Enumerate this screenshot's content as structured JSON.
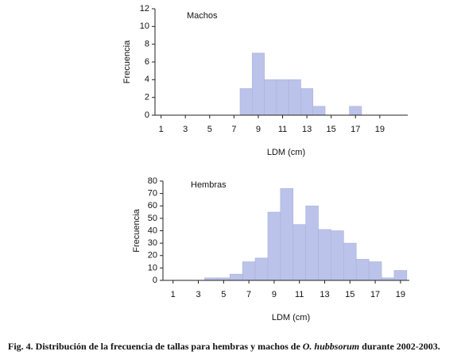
{
  "chart_data": [
    {
      "type": "histogram",
      "label": "Machos",
      "x_label": "LDM (cm)",
      "y_label": "Frecuencia",
      "bins": [
        7.5,
        8.5,
        9.5,
        10.5,
        11.5,
        12.5,
        13.5,
        14.5,
        15.5,
        16.5,
        17.5
      ],
      "values": [
        3,
        7,
        4,
        4,
        4,
        3,
        1,
        0,
        0,
        1
      ],
      "color": "#bcc3ea",
      "xlim": [
        0.5,
        21.3
      ],
      "xticks": [
        1,
        3,
        5,
        7,
        9,
        11,
        13,
        15,
        17,
        19
      ],
      "ylim": [
        0,
        12
      ],
      "yticks": [
        0,
        2,
        4,
        6,
        8,
        10,
        12
      ]
    },
    {
      "type": "histogram",
      "label": "Hembras",
      "x_label": "LDM (cm)",
      "y_label": "Frecuencia",
      "bins": [
        3.5,
        4.5,
        5.5,
        6.5,
        7.5,
        8.5,
        9.5,
        10.5,
        11.5,
        12.5,
        13.5,
        14.5,
        15.5,
        16.5,
        17.5,
        18.5,
        19.5
      ],
      "values": [
        2,
        2,
        5,
        15,
        18,
        55,
        74,
        45,
        60,
        41,
        40,
        30,
        17,
        15,
        2,
        8
      ],
      "color": "#bcc3ea",
      "xlim": [
        0.2,
        19.7
      ],
      "xticks": [
        1,
        3,
        5,
        7,
        9,
        11,
        13,
        15,
        17,
        19
      ],
      "ylim": [
        0,
        80
      ],
      "yticks": [
        0,
        10,
        20,
        30,
        40,
        50,
        60,
        70,
        80
      ]
    }
  ],
  "caption": {
    "before": "Fig. 4. Distribución de la frecuencia de tallas para hembras y machos de ",
    "species": "O. hubbsorum",
    "after": " durante 2002-2003."
  }
}
